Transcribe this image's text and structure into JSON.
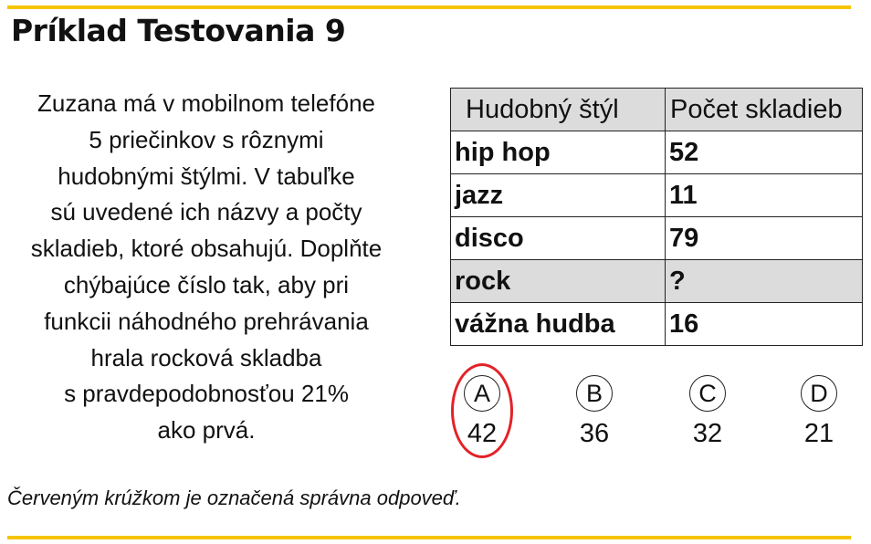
{
  "title": "Príklad Testovania 9",
  "problem_lines": [
    "Zuzana má v mobilnom telefóne",
    "5 priečinkov s rôznymi",
    "hudobnými štýlmi. V tabuľke",
    "sú uvedené ich názvy a počty",
    "skladieb, ktoré obsahujú. Doplňte",
    "chýbajúce číslo tak, aby pri",
    "funkcii náhodného prehrávania",
    "hrala rocková skladba",
    "s pravdepodobnosťou 21%",
    "ako prvá."
  ],
  "table": {
    "headers": [
      "Hudobný štýl",
      "Počet skladieb"
    ],
    "rows": [
      {
        "style": "hip hop",
        "count": "52"
      },
      {
        "style": "jazz",
        "count": "11"
      },
      {
        "style": "disco",
        "count": "79"
      },
      {
        "style": "rock",
        "count": "?"
      },
      {
        "style": "vážna hudba",
        "count": "16"
      }
    ],
    "highlight_row": "rock"
  },
  "options": [
    {
      "letter": "A",
      "value": "42",
      "correct": true
    },
    {
      "letter": "B",
      "value": "36",
      "correct": false
    },
    {
      "letter": "C",
      "value": "32",
      "correct": false
    },
    {
      "letter": "D",
      "value": "21",
      "correct": false
    }
  ],
  "footnote": "Červeným krúžkom je označená správna odpoveď.",
  "colors": {
    "accent_rule": "#f5c400",
    "correct_marker": "#e32227",
    "header_fill": "#dcdcdc"
  }
}
